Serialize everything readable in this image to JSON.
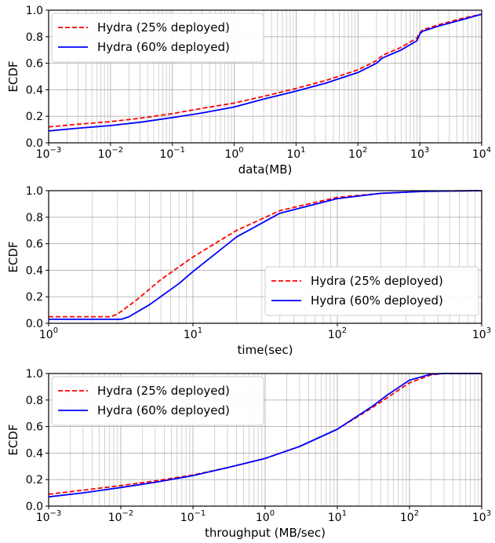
{
  "chart_data": [
    {
      "type": "line",
      "title": "",
      "xlabel": "data(MB)",
      "ylabel": "ECDF",
      "xscale": "log",
      "xlim": [
        0.001,
        10000
      ],
      "ylim": [
        0,
        1
      ],
      "x_ticks": [
        {
          "value": 0.001,
          "base": "10",
          "exp": "−3"
        },
        {
          "value": 0.01,
          "base": "10",
          "exp": "−2"
        },
        {
          "value": 0.1,
          "base": "10",
          "exp": "−1"
        },
        {
          "value": 1,
          "base": "10",
          "exp": "0"
        },
        {
          "value": 10,
          "base": "10",
          "exp": "1"
        },
        {
          "value": 100,
          "base": "10",
          "exp": "2"
        },
        {
          "value": 1000,
          "base": "10",
          "exp": "3"
        },
        {
          "value": 10000,
          "base": "10",
          "exp": "4"
        }
      ],
      "y_ticks": [
        "0.0",
        "0.2",
        "0.4",
        "0.6",
        "0.8",
        "1.0"
      ],
      "grid": "major and minor",
      "legend": "upper left",
      "series": [
        {
          "name": "Hydra (25% deployed)",
          "color": "#ff0000",
          "style": "dashed",
          "x": [
            0.001,
            0.003,
            0.01,
            0.03,
            0.1,
            0.3,
            1,
            3,
            10,
            30,
            100,
            200,
            250,
            500,
            900,
            1000,
            1100,
            2000,
            5000,
            10000
          ],
          "y": [
            0.12,
            0.14,
            0.16,
            0.185,
            0.22,
            0.26,
            0.3,
            0.35,
            0.41,
            0.47,
            0.55,
            0.62,
            0.66,
            0.72,
            0.79,
            0.83,
            0.85,
            0.89,
            0.94,
            0.97
          ]
        },
        {
          "name": "Hydra (60% deployed)",
          "color": "#0000ff",
          "style": "solid",
          "x": [
            0.001,
            0.003,
            0.01,
            0.03,
            0.1,
            0.3,
            1,
            3,
            10,
            30,
            100,
            200,
            250,
            500,
            900,
            1000,
            1100,
            2000,
            5000,
            10000
          ],
          "y": [
            0.09,
            0.11,
            0.13,
            0.155,
            0.19,
            0.225,
            0.27,
            0.33,
            0.39,
            0.45,
            0.53,
            0.6,
            0.64,
            0.7,
            0.77,
            0.82,
            0.84,
            0.88,
            0.93,
            0.97
          ]
        }
      ]
    },
    {
      "type": "line",
      "title": "",
      "xlabel": "time(sec)",
      "ylabel": "ECDF",
      "xscale": "log",
      "xlim": [
        1,
        1000
      ],
      "ylim": [
        0,
        1
      ],
      "x_ticks": [
        {
          "value": 1,
          "base": "10",
          "exp": "0"
        },
        {
          "value": 10,
          "base": "10",
          "exp": "1"
        },
        {
          "value": 100,
          "base": "10",
          "exp": "2"
        },
        {
          "value": 1000,
          "base": "10",
          "exp": "3"
        }
      ],
      "y_ticks": [
        "0.0",
        "0.2",
        "0.4",
        "0.6",
        "0.8",
        "1.0"
      ],
      "grid": "major and minor",
      "legend": "lower right",
      "series": [
        {
          "name": "Hydra (25% deployed)",
          "color": "#ff0000",
          "style": "dashed",
          "x": [
            1,
            2.7,
            3,
            4,
            6,
            10,
            20,
            40,
            100,
            200,
            400,
            1000
          ],
          "y": [
            0.05,
            0.05,
            0.07,
            0.17,
            0.33,
            0.5,
            0.7,
            0.85,
            0.95,
            0.98,
            0.995,
            1.0
          ]
        },
        {
          "name": "Hydra (60% deployed)",
          "color": "#0000ff",
          "style": "solid",
          "x": [
            1,
            3.2,
            3.6,
            5,
            8,
            10,
            20,
            40,
            100,
            200,
            400,
            1000
          ],
          "y": [
            0.03,
            0.03,
            0.05,
            0.14,
            0.3,
            0.39,
            0.65,
            0.83,
            0.94,
            0.98,
            0.995,
            1.0
          ]
        }
      ]
    },
    {
      "type": "line",
      "title": "",
      "xlabel": "throughput (MB/sec)",
      "ylabel": "ECDF",
      "xscale": "log",
      "xlim": [
        0.001,
        1000
      ],
      "ylim": [
        0,
        1
      ],
      "x_ticks": [
        {
          "value": 0.001,
          "base": "10",
          "exp": "−3"
        },
        {
          "value": 0.01,
          "base": "10",
          "exp": "−2"
        },
        {
          "value": 0.1,
          "base": "10",
          "exp": "−1"
        },
        {
          "value": 1,
          "base": "10",
          "exp": "0"
        },
        {
          "value": 10,
          "base": "10",
          "exp": "1"
        },
        {
          "value": 100,
          "base": "10",
          "exp": "2"
        },
        {
          "value": 1000,
          "base": "10",
          "exp": "3"
        }
      ],
      "y_ticks": [
        "0.0",
        "0.2",
        "0.4",
        "0.6",
        "0.8",
        "1.0"
      ],
      "grid": "major and minor",
      "legend": "upper left",
      "series": [
        {
          "name": "Hydra (25% deployed)",
          "color": "#ff0000",
          "style": "dashed",
          "x": [
            0.001,
            0.003,
            0.01,
            0.03,
            0.1,
            0.3,
            1,
            3,
            10,
            30,
            50,
            100,
            200,
            300,
            1000
          ],
          "y": [
            0.09,
            0.12,
            0.155,
            0.19,
            0.235,
            0.29,
            0.36,
            0.45,
            0.58,
            0.74,
            0.82,
            0.93,
            0.99,
            1.0,
            1.0
          ]
        },
        {
          "name": "Hydra (60% deployed)",
          "color": "#0000ff",
          "style": "solid",
          "x": [
            0.001,
            0.003,
            0.01,
            0.03,
            0.1,
            0.3,
            1,
            3,
            10,
            30,
            50,
            100,
            200,
            300,
            1000
          ],
          "y": [
            0.07,
            0.1,
            0.14,
            0.18,
            0.23,
            0.29,
            0.36,
            0.45,
            0.58,
            0.75,
            0.84,
            0.95,
            0.995,
            1.0,
            1.0
          ]
        }
      ]
    }
  ]
}
